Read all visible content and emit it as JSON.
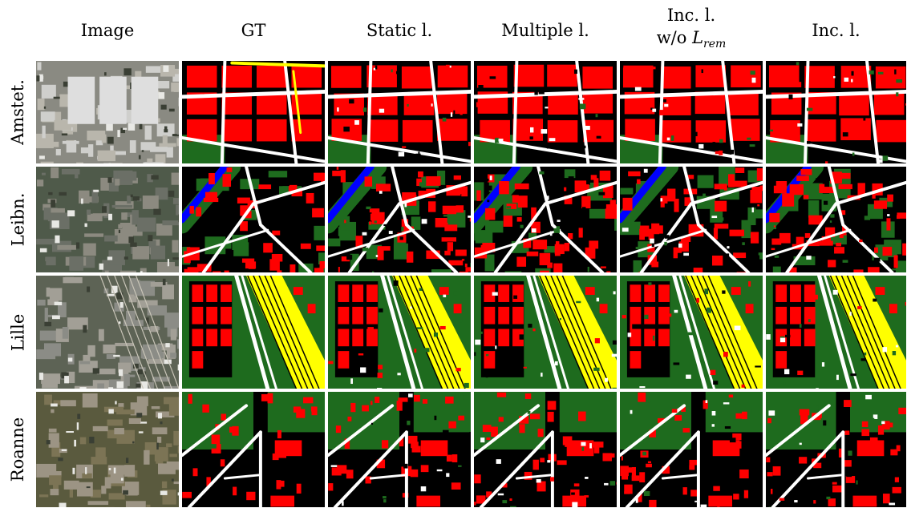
{
  "columns": [
    {
      "label": "Image"
    },
    {
      "label": "GT"
    },
    {
      "label": "Static l."
    },
    {
      "label": "Multiple l."
    },
    {
      "label_line1": "Inc. l.",
      "label_line2_prefix": "w/o ",
      "label_line2_math": "L",
      "label_line2_sub": "rem"
    },
    {
      "label": "Inc. l."
    }
  ],
  "rows": [
    {
      "label": "Amstet."
    },
    {
      "label": "Leibn."
    },
    {
      "label": "Lille"
    },
    {
      "label": "Roanne"
    }
  ],
  "class_colors": {
    "background": "#000000",
    "building": "#ff0000",
    "road": "#ffffff",
    "vegetation": "#1e6b1e",
    "water": "#0000ff",
    "railway": "#ffff00"
  }
}
